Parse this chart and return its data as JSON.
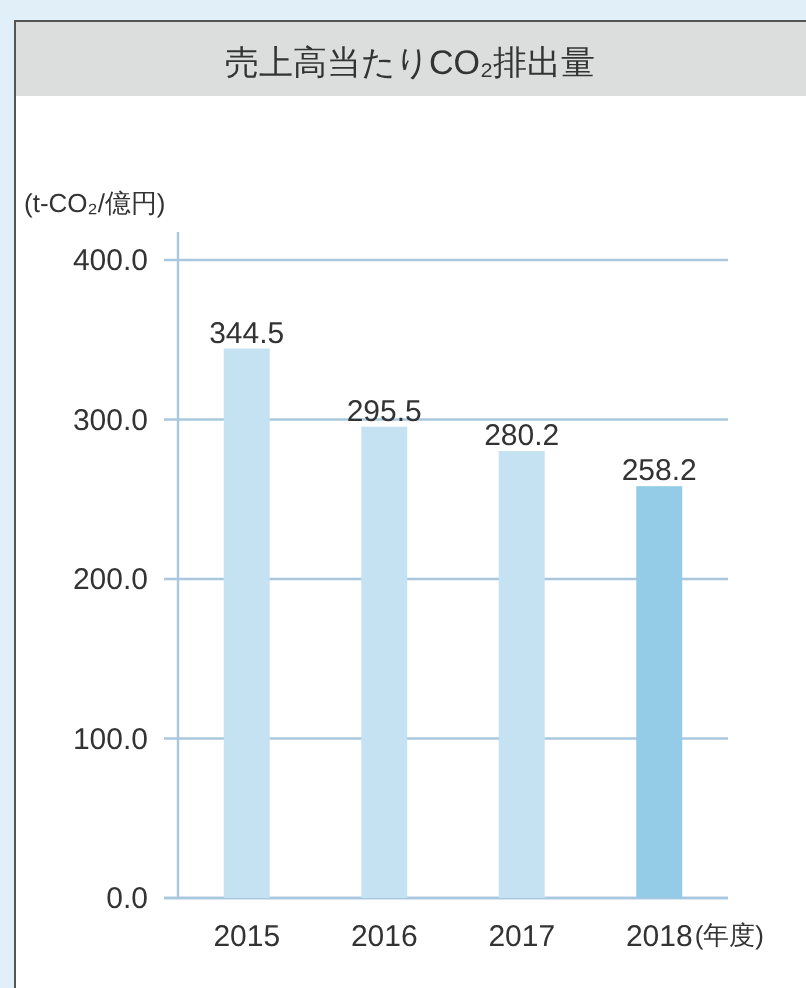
{
  "chart_data": {
    "type": "bar",
    "title": "売上高当たりCO₂排出量",
    "ylabel": "(t-CO₂/億円)",
    "xlabel": "(年度)",
    "categories": [
      "2015",
      "2016",
      "2017",
      "2018"
    ],
    "values": [
      344.5,
      295.5,
      280.2,
      258.2
    ],
    "colors": [
      "#c5e2f3",
      "#c5e2f3",
      "#c5e2f3",
      "#94cce8"
    ],
    "ylim": [
      0,
      400
    ],
    "yticks": [
      {
        "value": 0,
        "label": "0.0"
      },
      {
        "value": 100,
        "label": "100.0"
      },
      {
        "value": 200,
        "label": "200.0"
      },
      {
        "value": 300,
        "label": "300.0"
      },
      {
        "value": 400,
        "label": "400.0"
      }
    ],
    "grid": "y",
    "data_labels": true
  }
}
